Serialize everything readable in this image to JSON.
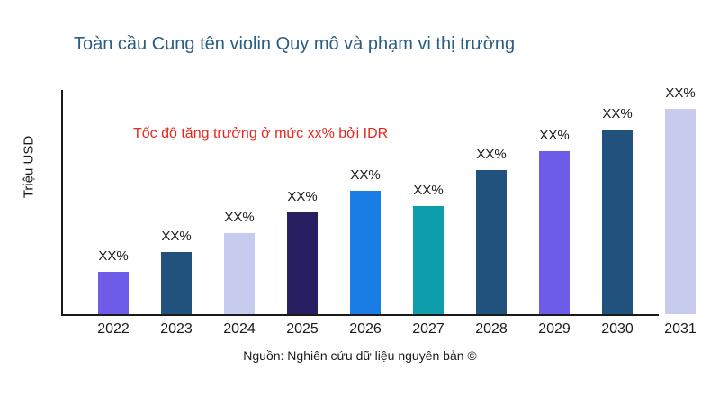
{
  "chart_data": {
    "type": "bar",
    "title": "Toàn cầu Cung tên violin Quy mô và phạm vi thị trường",
    "annotation": "Tốc độ tăng trưởng ở mức xx% bởi IDR",
    "xlabel": "",
    "ylabel": "Triệu USD",
    "source": "Nguồn: Nghiên cứu dữ liệu nguyên bản ©",
    "categories": [
      "2022",
      "2023",
      "2024",
      "2025",
      "2026",
      "2027",
      "2028",
      "2029",
      "2030",
      "2031"
    ],
    "values": [
      47,
      69,
      90,
      113,
      138,
      120,
      161,
      182,
      206,
      229
    ],
    "values_note": "relative bar heights; actual values are unlabeled placeholders",
    "value_labels": [
      "XX%",
      "XX%",
      "XX%",
      "XX%",
      "XX%",
      "XX%",
      "XX%",
      "XX%",
      "XX%",
      "XX%"
    ],
    "bar_colors": [
      "#6c5ce8",
      "#21517d",
      "#c7cbee",
      "#262063",
      "#1a7de6",
      "#0d9dab",
      "#21517d",
      "#6c5ce8",
      "#21517d",
      "#c7cbee"
    ],
    "ylim": [
      0,
      250
    ],
    "grid": false,
    "legend": false
  },
  "colors": {
    "title": "#2b5e84",
    "annotation": "#ed251c",
    "axis": "#1a1a1a",
    "text": "#1a1a1a",
    "background": "#ffffff"
  }
}
